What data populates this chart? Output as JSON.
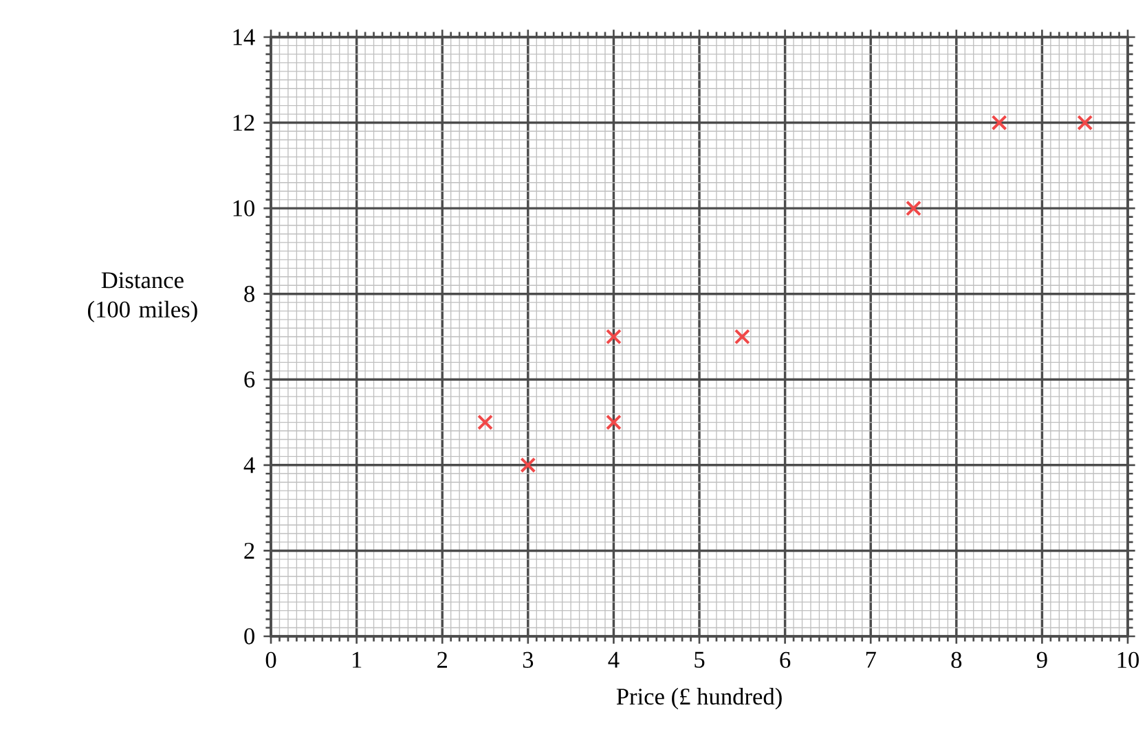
{
  "chart_data": {
    "type": "scatter",
    "xlabel": "Price (£ hundred)",
    "ylabel": "Distance (100 miles)",
    "x": [
      2.5,
      3,
      4,
      4,
      5.5,
      7.5,
      8.5,
      9.5
    ],
    "values": [
      5,
      4,
      7,
      5,
      7,
      10,
      12,
      12
    ],
    "color": "#f04848",
    "marker": "cross",
    "grid": true,
    "xlim": [
      0,
      10
    ],
    "xticks": [
      0,
      1,
      2,
      3,
      4,
      5,
      6,
      7,
      8,
      9,
      10
    ],
    "ylim": [
      0,
      14
    ],
    "yticks": [
      0,
      2,
      4,
      6,
      8,
      10,
      12,
      14
    ]
  }
}
